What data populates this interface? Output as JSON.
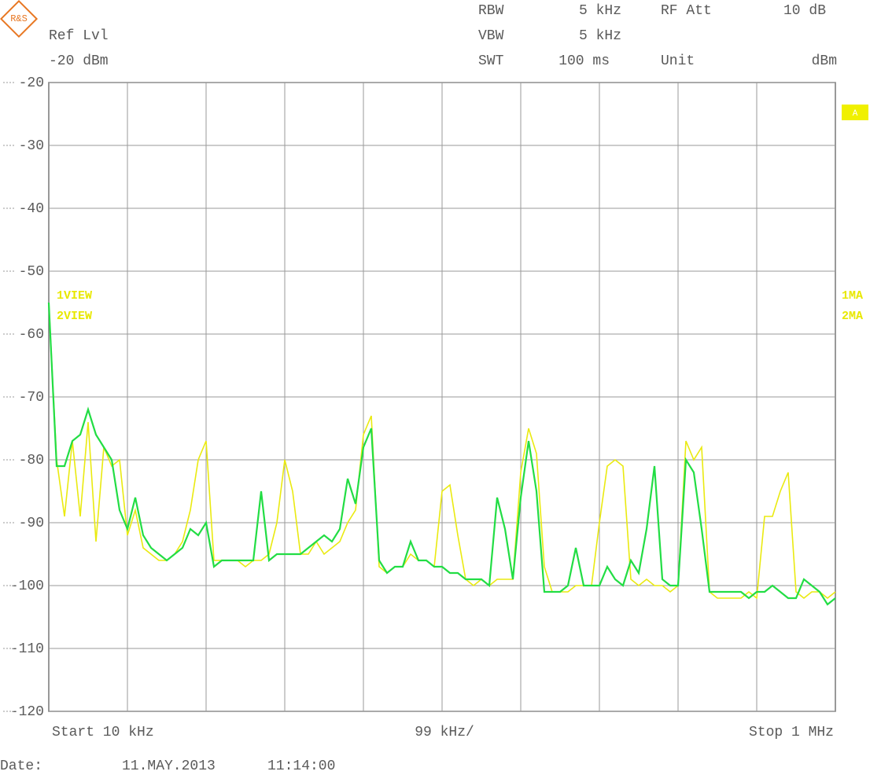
{
  "chart_data": {
    "type": "line",
    "ref_level": {
      "label": "Ref Lvl",
      "value": "-20 dBm"
    },
    "settings": [
      {
        "label": "RBW",
        "value": "5 kHz"
      },
      {
        "label": "VBW",
        "value": "5 kHz"
      },
      {
        "label": "SWT",
        "value": "100 ms"
      },
      {
        "label": "RF Att",
        "value": "10 dB"
      },
      {
        "label": "Unit",
        "value": "dBm"
      }
    ],
    "marker": "A",
    "detectors": [
      "1MA",
      "2MA"
    ],
    "x_labels": {
      "start": "Start 10 kHz",
      "division": "99 kHz/",
      "stop": "Stop 1 MHz"
    },
    "date": {
      "label": "Date:",
      "value": "11.MAY.2013",
      "time": "11:14:00"
    },
    "xlim": [
      10,
      1000
    ],
    "ylim": [
      -120,
      -20
    ],
    "yticks": [
      -20,
      -30,
      -40,
      -50,
      -60,
      -70,
      -80,
      -90,
      -100,
      -110,
      -120
    ],
    "grid": true,
    "x": [
      10,
      19.9,
      29.8,
      39.7,
      49.6,
      59.5,
      69.4,
      79.3,
      89.2,
      99.1,
      109,
      118.9,
      128.8,
      138.7,
      148.6,
      158.5,
      168.4,
      178.3,
      188.2,
      198.1,
      208,
      217.9,
      227.8,
      237.7,
      247.6,
      257.5,
      267.4,
      277.3,
      287.2,
      297.1,
      307,
      316.9,
      326.8,
      336.7,
      346.6,
      356.5,
      366.4,
      376.3,
      386.2,
      396.1,
      406,
      415.9,
      425.8,
      435.7,
      445.6,
      455.5,
      465.4,
      475.3,
      485.2,
      495.1,
      505,
      514.9,
      524.8,
      534.7,
      544.6,
      554.5,
      564.4,
      574.3,
      584.2,
      594.1,
      604,
      613.9,
      623.8,
      633.7,
      643.6,
      653.5,
      663.4,
      673.3,
      683.2,
      693.1,
      703,
      712.9,
      722.8,
      732.7,
      742.6,
      752.5,
      762.4,
      772.3,
      782.2,
      792.1,
      802,
      811.9,
      821.8,
      831.7,
      841.6,
      851.5,
      861.4,
      871.3,
      881.2,
      891.1,
      901,
      910.9,
      920.8,
      930.7,
      940.6,
      950.5,
      960.4,
      970.3,
      980.2,
      990.1,
      1000
    ],
    "series": [
      {
        "name": "1VIEW",
        "color": "#eaea10",
        "values": [
          -55,
          -80,
          -89,
          -77,
          -89,
          -74,
          -93,
          -78,
          -81,
          -80,
          -92,
          -88,
          -94,
          -95,
          -96,
          -96,
          -95,
          -93,
          -88,
          -80,
          -77,
          -96,
          -96,
          -96,
          -96,
          -97,
          -96,
          -96,
          -95,
          -90,
          -80,
          -85,
          -95,
          -95,
          -93,
          -95,
          -94,
          -93,
          -90,
          -88,
          -76,
          -73,
          -97,
          -98,
          -97,
          -97,
          -95,
          -96,
          -96,
          -97,
          -85,
          -84,
          -92,
          -99,
          -100,
          -99,
          -100,
          -99,
          -99,
          -99,
          -82,
          -75,
          -79,
          -97,
          -101,
          -101,
          -101,
          -100,
          -100,
          -100,
          -90,
          -81,
          -80,
          -81,
          -99,
          -100,
          -99,
          -100,
          -100,
          -101,
          -100,
          -77,
          -80,
          -78,
          -101,
          -102,
          -102,
          -102,
          -102,
          -101,
          -102,
          -89,
          -89,
          -85,
          -82,
          -101,
          -102,
          -101,
          -101,
          -102,
          -101
        ]
      },
      {
        "name": "2VIEW",
        "color": "#22dd44",
        "values": [
          -55,
          -81,
          -81,
          -77,
          -76,
          -72,
          -76,
          -78,
          -80,
          -88,
          -91,
          -86,
          -92,
          -94,
          -95,
          -96,
          -95,
          -94,
          -91,
          -92,
          -90,
          -97,
          -96,
          -96,
          -96,
          -96,
          -96,
          -85,
          -96,
          -95,
          -95,
          -95,
          -95,
          -94,
          -93,
          -92,
          -93,
          -91,
          -83,
          -87,
          -78,
          -75,
          -96,
          -98,
          -97,
          -97,
          -93,
          -96,
          -96,
          -97,
          -97,
          -98,
          -98,
          -99,
          -99,
          -99,
          -100,
          -86,
          -91,
          -99,
          -86,
          -77,
          -85,
          -101,
          -101,
          -101,
          -100,
          -94,
          -100,
          -100,
          -100,
          -97,
          -99,
          -100,
          -96,
          -98,
          -91,
          -81,
          -99,
          -100,
          -100,
          -80,
          -82,
          -91,
          -101,
          -101,
          -101,
          -101,
          -101,
          -102,
          -101,
          -101,
          -100,
          -101,
          -102,
          -102,
          -99,
          -100,
          -101,
          -103,
          -102
        ]
      }
    ]
  }
}
